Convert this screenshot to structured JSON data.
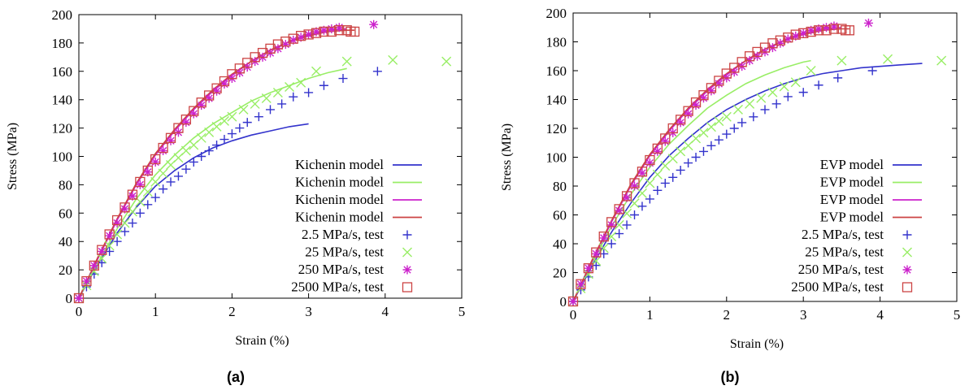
{
  "colors": {
    "rate_2_5": "#3333cc",
    "rate_25": "#99ee66",
    "rate_250": "#cc22cc",
    "rate_2500": "#cc4444"
  },
  "chart_data": [
    {
      "type": "line",
      "caption": "(a)",
      "xlabel": "Strain (%)",
      "ylabel": "Stress (MPa)",
      "xlim": [
        0,
        5
      ],
      "ylim": [
        0,
        200
      ],
      "xticks": [
        0,
        1,
        2,
        3,
        4,
        5
      ],
      "yticks": [
        0,
        20,
        40,
        60,
        80,
        100,
        120,
        140,
        160,
        180,
        200
      ],
      "grid": false,
      "legend_position": "bottom-right",
      "series": [
        {
          "name": "Kichenin model",
          "kind": "line",
          "color_key": "rate_2_5",
          "x": [
            0,
            0.25,
            0.5,
            0.75,
            1.0,
            1.25,
            1.5,
            1.75,
            2.0,
            2.25,
            2.5,
            2.75,
            3.0
          ],
          "y": [
            0,
            24,
            46,
            64,
            79,
            90,
            99,
            106,
            111,
            115,
            118,
            121,
            123
          ]
        },
        {
          "name": "Kichenin model",
          "kind": "line",
          "color_key": "rate_25",
          "x": [
            0,
            0.25,
            0.5,
            0.75,
            1.0,
            1.25,
            1.5,
            1.75,
            2.0,
            2.25,
            2.5,
            2.75,
            3.0,
            3.25,
            3.5
          ],
          "y": [
            0,
            25,
            49,
            70,
            87,
            101,
            113,
            123,
            131,
            139,
            145,
            150,
            155,
            159,
            162
          ]
        },
        {
          "name": "Kichenin model",
          "kind": "line",
          "color_key": "rate_250",
          "x": [
            0,
            0.25,
            0.5,
            0.75,
            1.0,
            1.25,
            1.5,
            1.75,
            2.0,
            2.25,
            2.5,
            2.75,
            3.0,
            3.25,
            3.5
          ],
          "y": [
            0,
            28,
            55,
            80,
            101,
            118,
            133,
            146,
            157,
            167,
            175,
            181,
            186,
            189,
            190
          ]
        },
        {
          "name": "Kichenin model",
          "kind": "line",
          "color_key": "rate_2500",
          "x": [
            0,
            0.25,
            0.5,
            0.75,
            1.0,
            1.25,
            1.5,
            1.75,
            2.0,
            2.25,
            2.5,
            2.75,
            3.0,
            3.25,
            3.5,
            3.6
          ],
          "y": [
            0,
            29,
            56,
            81,
            102,
            119,
            134,
            147,
            158,
            167,
            175,
            181,
            185,
            188,
            189,
            189
          ]
        },
        {
          "name": "2.5 MPa/s, test",
          "kind": "plus",
          "color_key": "rate_2_5",
          "x": [
            0,
            0.1,
            0.2,
            0.3,
            0.4,
            0.5,
            0.6,
            0.7,
            0.8,
            0.9,
            1.0,
            1.1,
            1.2,
            1.3,
            1.4,
            1.5,
            1.6,
            1.7,
            1.8,
            1.9,
            2.0,
            2.1,
            2.2,
            2.35,
            2.5,
            2.65,
            2.8,
            3.0,
            3.2,
            3.45,
            3.9
          ],
          "y": [
            0,
            8,
            17,
            25,
            33,
            40,
            47,
            53,
            60,
            66,
            71,
            77,
            82,
            86,
            91,
            96,
            100,
            104,
            108,
            112,
            116,
            120,
            124,
            128,
            133,
            137,
            142,
            145,
            150,
            155,
            160
          ]
        },
        {
          "name": "25 MPa/s, test",
          "kind": "cross",
          "color_key": "rate_25",
          "x": [
            0,
            0.1,
            0.2,
            0.3,
            0.4,
            0.5,
            0.6,
            0.7,
            0.8,
            0.9,
            1.0,
            1.1,
            1.2,
            1.3,
            1.4,
            1.5,
            1.6,
            1.7,
            1.8,
            1.9,
            2.0,
            2.15,
            2.3,
            2.45,
            2.6,
            2.75,
            2.9,
            3.1,
            3.5,
            4.1,
            4.8
          ],
          "y": [
            0,
            9,
            19,
            28,
            37,
            45,
            53,
            61,
            68,
            75,
            82,
            88,
            94,
            99,
            104,
            108,
            113,
            117,
            121,
            125,
            128,
            133,
            137,
            141,
            145,
            149,
            152,
            160,
            167,
            168,
            167
          ]
        },
        {
          "name": "250 MPa/s, test",
          "kind": "star",
          "color_key": "rate_250",
          "x": [
            0,
            0.1,
            0.2,
            0.3,
            0.4,
            0.5,
            0.6,
            0.7,
            0.8,
            0.9,
            1.0,
            1.1,
            1.2,
            1.3,
            1.4,
            1.5,
            1.6,
            1.7,
            1.8,
            1.9,
            2.0,
            2.1,
            2.2,
            2.3,
            2.4,
            2.5,
            2.6,
            2.7,
            2.8,
            2.9,
            3.0,
            3.1,
            3.2,
            3.3,
            3.4,
            3.85
          ],
          "y": [
            0,
            12,
            23,
            33,
            44,
            53,
            63,
            72,
            80,
            89,
            96,
            104,
            111,
            117,
            124,
            130,
            136,
            141,
            146,
            151,
            155,
            159,
            163,
            167,
            170,
            173,
            176,
            179,
            182,
            184,
            186,
            188,
            189,
            190,
            191,
            193
          ]
        },
        {
          "name": "2500 MPa/s, test",
          "kind": "square",
          "color_key": "rate_2500",
          "x": [
            0,
            0.1,
            0.2,
            0.3,
            0.4,
            0.5,
            0.6,
            0.7,
            0.8,
            0.9,
            1.0,
            1.1,
            1.2,
            1.3,
            1.4,
            1.5,
            1.6,
            1.7,
            1.8,
            1.9,
            2.0,
            2.1,
            2.2,
            2.3,
            2.4,
            2.5,
            2.6,
            2.7,
            2.8,
            2.9,
            3.0,
            3.1,
            3.2,
            3.3,
            3.4,
            3.5,
            3.55,
            3.6
          ],
          "y": [
            0,
            12,
            23,
            34,
            45,
            55,
            64,
            73,
            82,
            90,
            98,
            106,
            113,
            120,
            126,
            132,
            138,
            143,
            148,
            153,
            158,
            162,
            166,
            170,
            173,
            176,
            179,
            181,
            183,
            185,
            186,
            187,
            188,
            188,
            189,
            189,
            188,
            188
          ]
        }
      ]
    },
    {
      "type": "line",
      "caption": "(b)",
      "xlabel": "Strain (%)",
      "ylabel": "Stress (MPa)",
      "xlim": [
        0,
        5
      ],
      "ylim": [
        0,
        200
      ],
      "xticks": [
        0,
        1,
        2,
        3,
        4,
        5
      ],
      "yticks": [
        0,
        20,
        40,
        60,
        80,
        100,
        120,
        140,
        160,
        180,
        200
      ],
      "grid": false,
      "legend_position": "bottom-right",
      "series": [
        {
          "name": "EVP model",
          "kind": "line",
          "color_key": "rate_2_5",
          "x": [
            0,
            0.25,
            0.5,
            0.75,
            1.0,
            1.25,
            1.5,
            1.75,
            2.0,
            2.25,
            2.5,
            2.75,
            3.0,
            3.25,
            3.5,
            3.75,
            4.0,
            4.25,
            4.55
          ],
          "y": [
            0,
            25,
            48,
            68,
            86,
            101,
            113,
            124,
            133,
            140,
            146,
            151,
            155,
            158,
            160,
            162,
            163,
            164,
            165
          ]
        },
        {
          "name": "EVP model",
          "kind": "line",
          "color_key": "rate_25",
          "x": [
            0,
            0.25,
            0.5,
            0.75,
            1.0,
            1.25,
            1.5,
            1.75,
            2.0,
            2.25,
            2.5,
            2.75,
            3.0,
            3.1
          ],
          "y": [
            0,
            27,
            52,
            74,
            93,
            109,
            122,
            134,
            143,
            151,
            157,
            162,
            166,
            167
          ]
        },
        {
          "name": "EVP model",
          "kind": "line",
          "color_key": "rate_250",
          "x": [
            0,
            0.25,
            0.5,
            0.75,
            1.0,
            1.25,
            1.5,
            1.75,
            2.0,
            2.25,
            2.5,
            2.75,
            3.0,
            3.25,
            3.5
          ],
          "y": [
            0,
            28,
            55,
            80,
            101,
            118,
            133,
            146,
            157,
            167,
            175,
            181,
            186,
            189,
            190
          ]
        },
        {
          "name": "EVP model",
          "kind": "line",
          "color_key": "rate_2500",
          "x": [
            0,
            0.25,
            0.5,
            0.75,
            1.0,
            1.25,
            1.5,
            1.75,
            2.0,
            2.25,
            2.5,
            2.75,
            3.0,
            3.25,
            3.5,
            3.6
          ],
          "y": [
            0,
            29,
            56,
            81,
            102,
            119,
            134,
            147,
            158,
            167,
            175,
            181,
            185,
            188,
            189,
            189
          ]
        },
        {
          "name": "2.5 MPa/s, test",
          "kind": "plus",
          "color_key": "rate_2_5",
          "x": [
            0,
            0.1,
            0.2,
            0.3,
            0.4,
            0.5,
            0.6,
            0.7,
            0.8,
            0.9,
            1.0,
            1.1,
            1.2,
            1.3,
            1.4,
            1.5,
            1.6,
            1.7,
            1.8,
            1.9,
            2.0,
            2.1,
            2.2,
            2.35,
            2.5,
            2.65,
            2.8,
            3.0,
            3.2,
            3.45,
            3.9
          ],
          "y": [
            0,
            8,
            17,
            25,
            33,
            40,
            47,
            53,
            60,
            66,
            71,
            77,
            82,
            86,
            91,
            96,
            100,
            104,
            108,
            112,
            116,
            120,
            124,
            128,
            133,
            137,
            142,
            145,
            150,
            155,
            160
          ]
        },
        {
          "name": "25 MPa/s, test",
          "kind": "cross",
          "color_key": "rate_25",
          "x": [
            0,
            0.1,
            0.2,
            0.3,
            0.4,
            0.5,
            0.6,
            0.7,
            0.8,
            0.9,
            1.0,
            1.1,
            1.2,
            1.3,
            1.4,
            1.5,
            1.6,
            1.7,
            1.8,
            1.9,
            2.0,
            2.15,
            2.3,
            2.45,
            2.6,
            2.75,
            2.9,
            3.1,
            3.5,
            4.1,
            4.8
          ],
          "y": [
            0,
            9,
            19,
            28,
            37,
            45,
            53,
            61,
            68,
            75,
            82,
            88,
            94,
            99,
            104,
            108,
            113,
            117,
            121,
            125,
            128,
            133,
            137,
            141,
            145,
            149,
            152,
            160,
            167,
            168,
            167
          ]
        },
        {
          "name": "250 MPa/s, test",
          "kind": "star",
          "color_key": "rate_250",
          "x": [
            0,
            0.1,
            0.2,
            0.3,
            0.4,
            0.5,
            0.6,
            0.7,
            0.8,
            0.9,
            1.0,
            1.1,
            1.2,
            1.3,
            1.4,
            1.5,
            1.6,
            1.7,
            1.8,
            1.9,
            2.0,
            2.1,
            2.2,
            2.3,
            2.4,
            2.5,
            2.6,
            2.7,
            2.8,
            2.9,
            3.0,
            3.1,
            3.2,
            3.3,
            3.4,
            3.85
          ],
          "y": [
            0,
            12,
            23,
            33,
            44,
            53,
            63,
            72,
            80,
            89,
            96,
            104,
            111,
            117,
            124,
            130,
            136,
            141,
            146,
            151,
            155,
            159,
            163,
            167,
            170,
            173,
            176,
            179,
            182,
            184,
            186,
            188,
            189,
            190,
            191,
            193
          ]
        },
        {
          "name": "2500 MPa/s, test",
          "kind": "square",
          "color_key": "rate_2500",
          "x": [
            0,
            0.1,
            0.2,
            0.3,
            0.4,
            0.5,
            0.6,
            0.7,
            0.8,
            0.9,
            1.0,
            1.1,
            1.2,
            1.3,
            1.4,
            1.5,
            1.6,
            1.7,
            1.8,
            1.9,
            2.0,
            2.1,
            2.2,
            2.3,
            2.4,
            2.5,
            2.6,
            2.7,
            2.8,
            2.9,
            3.0,
            3.1,
            3.2,
            3.3,
            3.4,
            3.5,
            3.55,
            3.6
          ],
          "y": [
            0,
            12,
            23,
            34,
            45,
            55,
            64,
            73,
            82,
            90,
            98,
            106,
            113,
            120,
            126,
            132,
            138,
            143,
            148,
            153,
            158,
            162,
            166,
            170,
            173,
            176,
            179,
            181,
            183,
            185,
            186,
            187,
            188,
            188,
            189,
            189,
            188,
            188
          ]
        }
      ]
    }
  ]
}
